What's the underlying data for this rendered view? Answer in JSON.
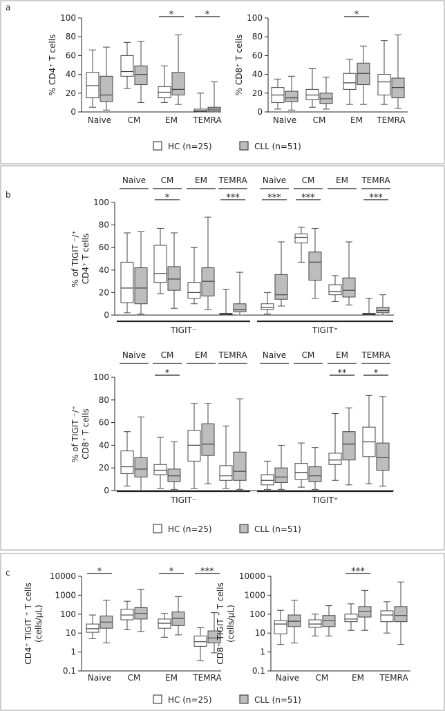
{
  "panels": [
    {
      "id": "a",
      "label": "a"
    },
    {
      "id": "b",
      "label": "b"
    },
    {
      "id": "c",
      "label": "c"
    }
  ],
  "legend": [
    {
      "label": "HC (n=25)",
      "color": "#ffffff"
    },
    {
      "label": "CLL (n=51)",
      "color": "#bdbdbd"
    }
  ],
  "colors": {
    "HC": "#ffffff",
    "CLL": "#bdbdbd",
    "stroke": "#444444",
    "axis": "#222222",
    "frame": "#9e9e9e"
  },
  "chart_data": [
    {
      "id": "a_cd4",
      "panel": "a",
      "type": "box",
      "ylabel": "% CD4⁺ T cells",
      "ylim": [
        0,
        100
      ],
      "yticks": [
        "0",
        "20",
        "40",
        "60",
        "80",
        "100"
      ],
      "categories": [
        "Naive",
        "CM",
        "EM",
        "TEMRA"
      ],
      "series": [
        {
          "name": "HC (n=25)",
          "boxes": [
            [
              5,
              15,
              28,
              42,
              66
            ],
            [
              25,
              38,
              43,
              60,
              74
            ],
            [
              10,
              15,
              21,
              27,
              49
            ],
            [
              0,
              0.5,
              1.5,
              3,
              20
            ]
          ]
        },
        {
          "name": "CLL (n=51)",
          "boxes": [
            [
              2,
              11,
              18,
              38,
              69
            ],
            [
              10,
              29,
              40,
              49,
              75
            ],
            [
              8,
              18,
              24,
              42,
              82
            ],
            [
              0,
              1,
              3,
              5,
              32
            ]
          ]
        }
      ],
      "significance": [
        "",
        "",
        "*",
        "*"
      ]
    },
    {
      "id": "a_cd8",
      "panel": "a",
      "type": "box",
      "ylabel": "% CD8⁺ T cells",
      "ylim": [
        0,
        100
      ],
      "yticks": [
        "0",
        "20",
        "40",
        "60",
        "80",
        "100"
      ],
      "categories": [
        "Naive",
        "CM",
        "EM",
        "TEMRA"
      ],
      "series": [
        {
          "name": "HC (n=25)",
          "boxes": [
            [
              3,
              10,
              18,
              26,
              35
            ],
            [
              5,
              13,
              18,
              24,
              46
            ],
            [
              8,
              24,
              31,
              41,
              56
            ],
            [
              8,
              18,
              32,
              40,
              76
            ]
          ]
        },
        {
          "name": "CLL (n=51)",
          "boxes": [
            [
              2,
              11,
              15,
              22,
              38
            ],
            [
              3,
              9,
              14,
              20,
              37
            ],
            [
              8,
              29,
              41,
              52,
              70
            ],
            [
              4,
              15,
              26,
              36,
              82
            ]
          ]
        }
      ],
      "significance": [
        "",
        "",
        "*",
        ""
      ]
    },
    {
      "id": "b_cd4",
      "panel": "b",
      "type": "box",
      "ylabel": "% of TIGIT ⁻/⁺ CD4⁺ T cells",
      "ylim": [
        0,
        100
      ],
      "yticks": [
        "0",
        "20",
        "40",
        "60",
        "80",
        "100"
      ],
      "categories": [
        "Naive",
        "CM",
        "EM",
        "TEMRA",
        "Naive",
        "CM",
        "EM",
        "TEMRA"
      ],
      "groups": [
        {
          "label": "TIGIT⁻",
          "span": [
            0,
            3
          ]
        },
        {
          "label": "TIGIT⁺",
          "span": [
            4,
            7
          ]
        }
      ],
      "series": [
        {
          "name": "HC (n=25)",
          "boxes": [
            [
              2,
              11,
              24,
              47,
              73
            ],
            [
              19,
              29,
              37,
              62,
              77
            ],
            [
              10,
              15,
              20,
              29,
              60
            ],
            [
              0,
              0.5,
              1,
              1.5,
              23
            ],
            [
              1,
              5,
              7,
              10,
              20
            ],
            [
              47,
              64,
              69,
              72,
              78
            ],
            [
              12,
              18,
              21,
              27,
              35
            ],
            [
              0,
              0.5,
              1,
              1.5,
              15
            ]
          ]
        },
        {
          "name": "CLL (n=51)",
          "boxes": [
            [
              1,
              10,
              24,
              42,
              74
            ],
            [
              6,
              22,
              32,
              43,
              73
            ],
            [
              5,
              17,
              30,
              42,
              87
            ],
            [
              0,
              3,
              5,
              10,
              38
            ],
            [
              8,
              14,
              18,
              36,
              65
            ],
            [
              15,
              31,
              47,
              56,
              77
            ],
            [
              9,
              16,
              22,
              33,
              65
            ],
            [
              0,
              2,
              4,
              7,
              18
            ]
          ]
        }
      ],
      "significance": [
        "",
        "*",
        "",
        "***",
        "***",
        "***",
        "",
        "***"
      ]
    },
    {
      "id": "b_cd8",
      "panel": "b",
      "type": "box",
      "ylabel": "% of TIGIT ⁻/⁺ CD8⁺ T cells",
      "ylim": [
        0,
        100
      ],
      "yticks": [
        "0",
        "20",
        "40",
        "60",
        "80",
        "100"
      ],
      "categories": [
        "Naive",
        "CM",
        "EM",
        "TEMRA",
        "Naive",
        "CM",
        "EM",
        "TEMRA"
      ],
      "groups": [
        {
          "label": "TIGIT⁻",
          "span": [
            0,
            3
          ]
        },
        {
          "label": "TIGIT⁺",
          "span": [
            4,
            7
          ]
        }
      ],
      "series": [
        {
          "name": "HC (n=25)",
          "boxes": [
            [
              4,
              15,
              21,
              35,
              52
            ],
            [
              2,
              14,
              18,
              23,
              47
            ],
            [
              2,
              26,
              40,
              53,
              77
            ],
            [
              2,
              9,
              13,
              22,
              57
            ],
            [
              1,
              5,
              9,
              14,
              26
            ],
            [
              3,
              10,
              16,
              24,
              42
            ],
            [
              9,
              23,
              27,
              33,
              68
            ],
            [
              6,
              30,
              43,
              56,
              84
            ]
          ]
        },
        {
          "name": "CLL (n=51)",
          "boxes": [
            [
              0,
              12,
              19,
              29,
              65
            ],
            [
              1,
              8,
              13,
              19,
              43
            ],
            [
              6,
              31,
              41,
              59,
              77
            ],
            [
              1,
              9,
              17,
              34,
              81
            ],
            [
              1,
              7,
              12,
              20,
              40
            ],
            [
              1,
              8,
              13,
              21,
              38
            ],
            [
              5,
              27,
              41,
              52,
              73
            ],
            [
              4,
              18,
              29,
              42,
              83
            ]
          ]
        }
      ],
      "significance": [
        "",
        "*",
        "",
        "",
        "",
        "",
        "**",
        "*"
      ]
    },
    {
      "id": "c_cd4",
      "panel": "c",
      "type": "box",
      "ylabel": "CD4⁺ TIGIT ⁺ T cells (cells/µL)",
      "yscale": "log",
      "ylim": [
        0.1,
        10000
      ],
      "yticks": [
        "0.1",
        "1",
        "10",
        "100",
        "1000",
        "10000"
      ],
      "categories": [
        "Naive",
        "CM",
        "EM",
        "TEMRA"
      ],
      "series": [
        {
          "name": "HC (n=25)",
          "boxes": [
            [
              5,
              11,
              17,
              30,
              90
            ],
            [
              15,
              50,
              90,
              180,
              480
            ],
            [
              6,
              18,
              33,
              55,
              110
            ],
            [
              0.35,
              2,
              3.5,
              7,
              19
            ]
          ]
        },
        {
          "name": "CLL (n=51)",
          "boxes": [
            [
              3,
              18,
              38,
              80,
              550
            ],
            [
              12,
              55,
              110,
              220,
              2000
            ],
            [
              8,
              25,
              60,
              130,
              850
            ],
            [
              0.9,
              3,
              5.5,
              13,
              120
            ]
          ]
        }
      ],
      "significance": [
        "*",
        "",
        "*",
        "***"
      ]
    },
    {
      "id": "c_cd8",
      "panel": "c",
      "type": "box",
      "ylabel": "CD8⁺ TIGIT ⁺ T cells (cells/µL)",
      "yscale": "log",
      "ylim": [
        0.1,
        10000
      ],
      "yticks": [
        "0.1",
        "1",
        "10",
        "100",
        "1000",
        "10000"
      ],
      "categories": [
        "Naive",
        "CM",
        "EM",
        "TEMRA"
      ],
      "series": [
        {
          "name": "HC (n=25)",
          "boxes": [
            [
              2.5,
              9,
              30,
              45,
              160
            ],
            [
              7,
              20,
              30,
              50,
              100
            ],
            [
              14,
              40,
              55,
              100,
              350
            ],
            [
              10,
              40,
              90,
              150,
              450
            ]
          ]
        },
        {
          "name": "CLL (n=51)",
          "boxes": [
            [
              3,
              22,
              42,
              90,
              550
            ],
            [
              7,
              22,
              45,
              85,
              280
            ],
            [
              14,
              70,
              140,
              250,
              1800
            ],
            [
              2.5,
              40,
              85,
              250,
              5000
            ]
          ]
        }
      ],
      "significance": [
        "",
        "",
        "***",
        ""
      ]
    }
  ]
}
